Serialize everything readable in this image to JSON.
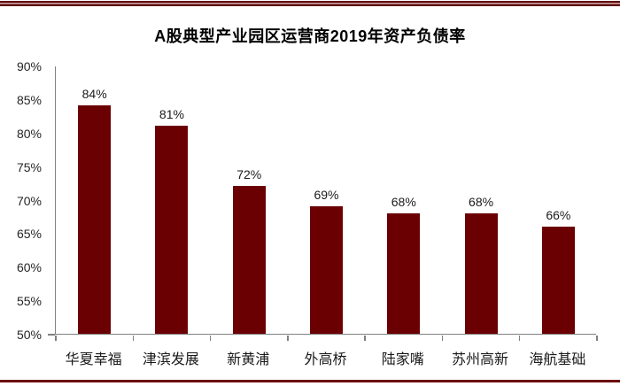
{
  "page": {
    "top_divider_color": "#6b0002",
    "bottom_divider_color": "#6b0002",
    "background_color": "#ffffff"
  },
  "chart_data": {
    "type": "bar",
    "title": "A股典型产业园区运营商2019年资产负债率",
    "categories": [
      "华夏幸福",
      "津滨发展",
      "新黄浦",
      "外高桥",
      "陆家嘴",
      "苏州高新",
      "海航基础"
    ],
    "values": [
      84,
      81,
      72,
      69,
      68,
      68,
      66
    ],
    "value_labels": [
      "84%",
      "81%",
      "72%",
      "69%",
      "68%",
      "68%",
      "66%"
    ],
    "xlabel": "",
    "ylabel": "",
    "ylim": [
      50,
      90
    ],
    "ytick_step": 5,
    "ytick_labels": [
      "90%",
      "85%",
      "80%",
      "75%",
      "70%",
      "65%",
      "60%",
      "55%",
      "50%"
    ],
    "grid": false,
    "legend": null,
    "bar_color": "#6b0002",
    "axis_color": "#808080",
    "text_color": "#262626",
    "title_color": "#000000"
  }
}
